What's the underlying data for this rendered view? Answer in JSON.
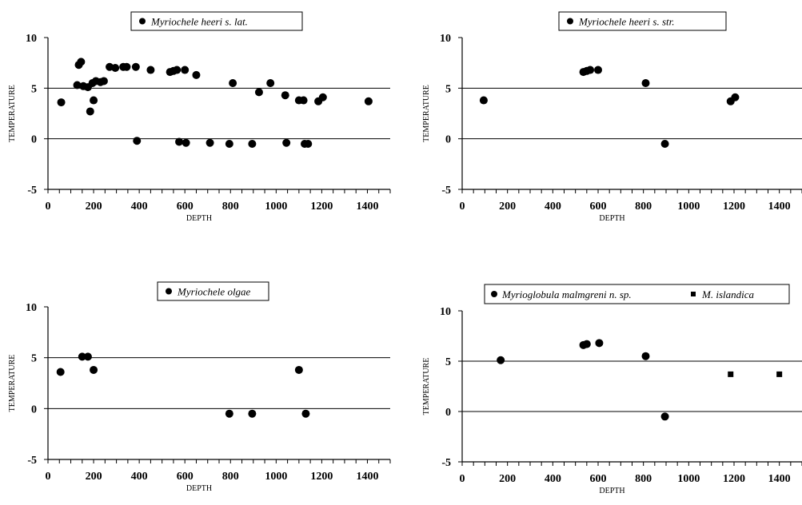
{
  "chart_data": [
    {
      "type": "scatter",
      "legend": [
        {
          "symbol": "circle",
          "label": "Myriochele heeri s. lat."
        }
      ],
      "xlabel": "DEPTH",
      "ylabel": "TEMPERATURE",
      "xlim": [
        0,
        1500
      ],
      "ylim": [
        -5,
        10
      ],
      "xticks": [
        "0",
        "200",
        "400",
        "600",
        "800",
        "1000",
        "1200",
        "1400"
      ],
      "yticks": [
        "10",
        "5",
        "0",
        "-5"
      ],
      "reference_lines_y": [
        5,
        0
      ],
      "series": [
        {
          "name": "Myriochele heeri s. lat.",
          "marker": "circle",
          "points": [
            [
              58,
              3.6
            ],
            [
              128,
              5.3
            ],
            [
              135,
              7.3
            ],
            [
              145,
              7.6
            ],
            [
              155,
              5.2
            ],
            [
              175,
              5.1
            ],
            [
              185,
              2.7
            ],
            [
              195,
              5.5
            ],
            [
              200,
              3.8
            ],
            [
              210,
              5.7
            ],
            [
              230,
              5.6
            ],
            [
              245,
              5.7
            ],
            [
              270,
              7.1
            ],
            [
              295,
              7.0
            ],
            [
              330,
              7.1
            ],
            [
              345,
              7.1
            ],
            [
              385,
              7.1
            ],
            [
              390,
              -0.2
            ],
            [
              450,
              6.8
            ],
            [
              535,
              6.6
            ],
            [
              550,
              6.7
            ],
            [
              565,
              6.8
            ],
            [
              575,
              -0.3
            ],
            [
              600,
              6.8
            ],
            [
              605,
              -0.4
            ],
            [
              650,
              6.3
            ],
            [
              710,
              -0.4
            ],
            [
              795,
              -0.5
            ],
            [
              810,
              5.5
            ],
            [
              895,
              -0.5
            ],
            [
              925,
              4.6
            ],
            [
              975,
              5.5
            ],
            [
              1040,
              4.3
            ],
            [
              1045,
              -0.4
            ],
            [
              1100,
              3.8
            ],
            [
              1120,
              3.8
            ],
            [
              1125,
              -0.5
            ],
            [
              1140,
              -0.5
            ],
            [
              1185,
              3.7
            ],
            [
              1205,
              4.1
            ],
            [
              1405,
              3.7
            ]
          ]
        }
      ]
    },
    {
      "type": "scatter",
      "legend": [
        {
          "symbol": "circle",
          "label": "Myriochele heeri s. str."
        }
      ],
      "xlabel": "DEPTH",
      "ylabel": "TEMPERATURE",
      "xlim": [
        0,
        1500
      ],
      "ylim": [
        -5,
        10
      ],
      "xticks": [
        "0",
        "200",
        "400",
        "600",
        "800",
        "1000",
        "1200",
        "1400"
      ],
      "yticks": [
        "10",
        "5",
        "0",
        "-5"
      ],
      "reference_lines_y": [
        5,
        0
      ],
      "series": [
        {
          "name": "Myriochele heeri s. str.",
          "marker": "circle",
          "points": [
            [
              95,
              3.8
            ],
            [
              535,
              6.6
            ],
            [
              550,
              6.7
            ],
            [
              565,
              6.8
            ],
            [
              600,
              6.8
            ],
            [
              810,
              5.5
            ],
            [
              895,
              -0.5
            ],
            [
              1185,
              3.7
            ],
            [
              1205,
              4.1
            ]
          ]
        }
      ]
    },
    {
      "type": "scatter",
      "legend": [
        {
          "symbol": "circle",
          "label": "Myriochele olgae"
        }
      ],
      "xlabel": "DEPTH",
      "ylabel": "TEMPERATURE",
      "xlim": [
        0,
        1500
      ],
      "ylim": [
        -5,
        10
      ],
      "xticks": [
        "0",
        "200",
        "400",
        "600",
        "800",
        "1000",
        "1200",
        "1400"
      ],
      "yticks": [
        "10",
        "5",
        "0",
        "-5"
      ],
      "reference_lines_y": [
        5,
        0
      ],
      "series": [
        {
          "name": "Myriochele olgae",
          "marker": "circle",
          "points": [
            [
              55,
              3.6
            ],
            [
              150,
              5.1
            ],
            [
              175,
              5.1
            ],
            [
              200,
              3.8
            ],
            [
              795,
              -0.5
            ],
            [
              895,
              -0.5
            ],
            [
              1100,
              3.8
            ],
            [
              1130,
              -0.5
            ]
          ]
        }
      ]
    },
    {
      "type": "scatter",
      "legend": [
        {
          "symbol": "circle",
          "label": "Myrioglobula malmgreni n. sp."
        },
        {
          "symbol": "square",
          "label": "M. islandica"
        }
      ],
      "xlabel": "DEPTH",
      "ylabel": "TEMPERATURE",
      "xlim": [
        0,
        1500
      ],
      "ylim": [
        -5,
        10
      ],
      "xticks": [
        "0",
        "200",
        "400",
        "600",
        "800",
        "1000",
        "1200",
        "1400"
      ],
      "yticks": [
        "10",
        "5",
        "0",
        "-5"
      ],
      "reference_lines_y": [
        5,
        0
      ],
      "series": [
        {
          "name": "Myrioglobula malmgreni n. sp.",
          "marker": "circle",
          "points": [
            [
              170,
              5.1
            ],
            [
              535,
              6.6
            ],
            [
              550,
              6.7
            ],
            [
              605,
              6.8
            ],
            [
              810,
              5.5
            ],
            [
              895,
              -0.5
            ]
          ]
        },
        {
          "name": "M. islandica",
          "marker": "square",
          "points": [
            [
              1185,
              3.7
            ],
            [
              1400,
              3.7
            ]
          ]
        }
      ]
    }
  ]
}
